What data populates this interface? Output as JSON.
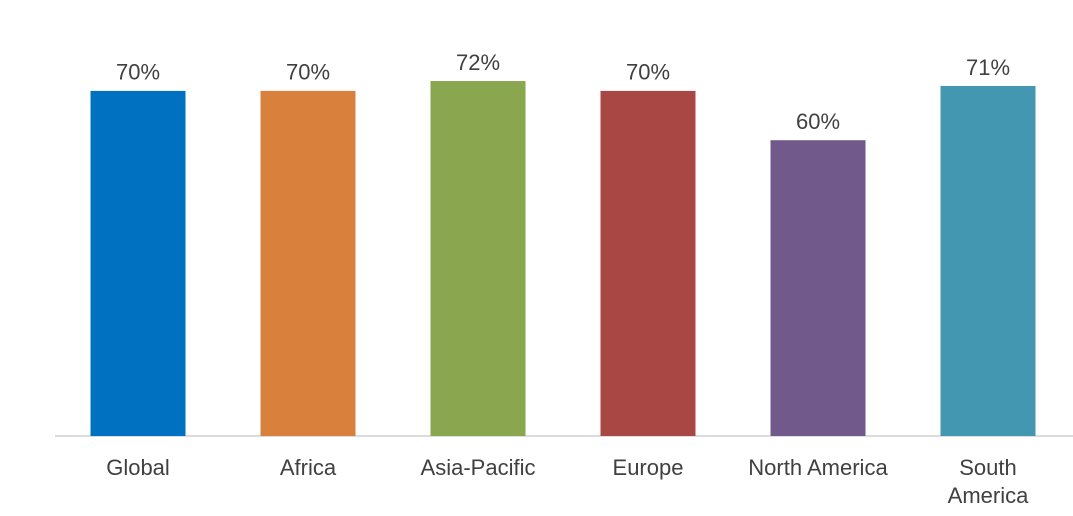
{
  "chart_data": {
    "type": "bar",
    "categories": [
      "Global",
      "Africa",
      "Asia-Pacific",
      "Europe",
      "North America",
      "South America"
    ],
    "values": [
      70,
      70,
      72,
      70,
      60,
      71
    ],
    "value_labels": [
      "70%",
      "70%",
      "72%",
      "70%",
      "60%",
      "71%"
    ],
    "colors": [
      "#0070c0",
      "#d9803d",
      "#8aa64f",
      "#a94744",
      "#72598c",
      "#4397b0"
    ]
  }
}
